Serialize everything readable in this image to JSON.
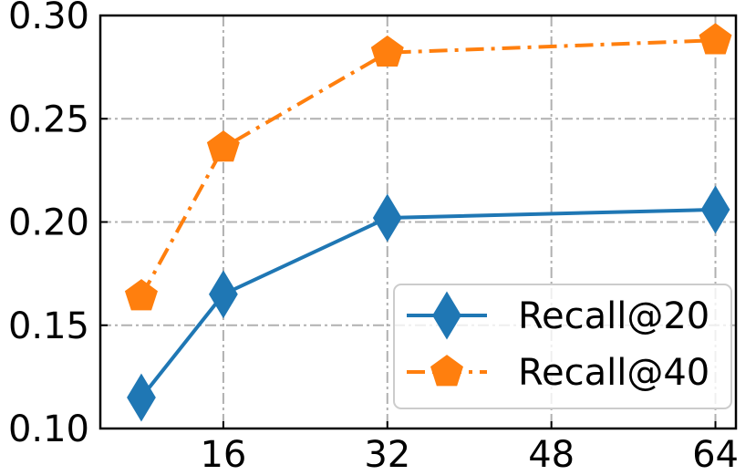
{
  "chart_data": {
    "type": "line",
    "title": "",
    "xlabel": "",
    "ylabel": "",
    "x": [
      8,
      16,
      32,
      64
    ],
    "xticks": [
      16,
      32,
      48,
      64
    ],
    "xtick_labels": [
      "16",
      "32",
      "48",
      "64"
    ],
    "yticks": [
      0.1,
      0.15,
      0.2,
      0.25,
      0.3
    ],
    "ytick_labels": [
      "0.10",
      "0.15",
      "0.20",
      "0.25",
      "0.30"
    ],
    "xlim": [
      4,
      66
    ],
    "ylim": [
      0.1,
      0.3
    ],
    "grid": true,
    "legend_position": "lower-right",
    "series": [
      {
        "name": "Recall@20",
        "values": [
          0.115,
          0.165,
          0.202,
          0.206
        ],
        "color": "#1f77b4",
        "marker": "thin-diamond",
        "linestyle": "solid"
      },
      {
        "name": "Recall@40",
        "values": [
          0.164,
          0.236,
          0.282,
          0.288
        ],
        "color": "#ff7f0e",
        "marker": "pentagon",
        "linestyle": "dashdot"
      }
    ]
  }
}
